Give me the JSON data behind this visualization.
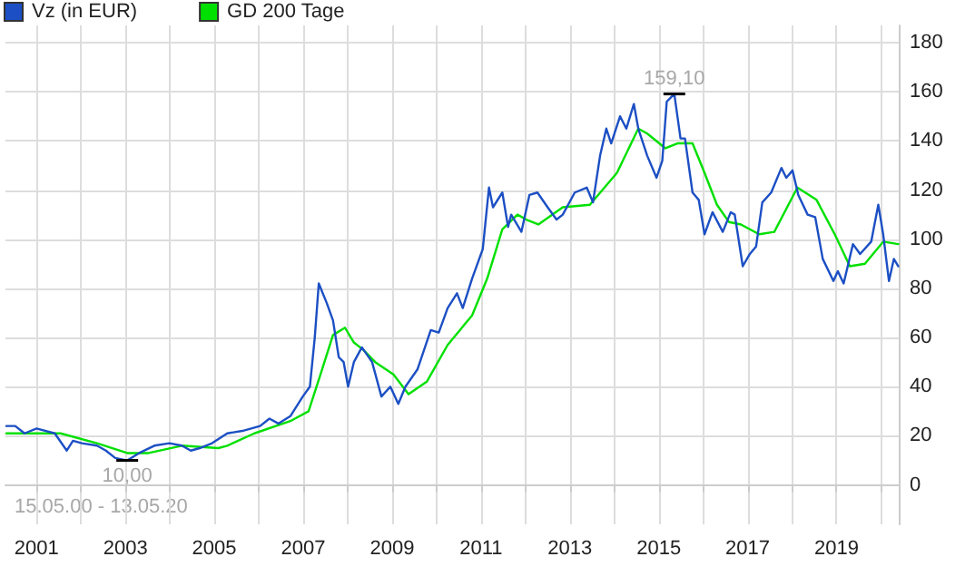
{
  "chart_data": {
    "type": "line",
    "legend": "top left",
    "grid": true,
    "marker": "none",
    "line_style": "solid",
    "xlim": [
      2000.3,
      2020.4
    ],
    "ylim": [
      -16,
      187
    ],
    "xticks": [
      2001,
      {
        "value": 2002,
        "label": null
      },
      2003,
      {
        "value": 2004,
        "label": null
      },
      2005,
      {
        "value": 2006,
        "label": null
      },
      2007,
      {
        "value": 2008,
        "label": null
      },
      2009,
      {
        "value": 2010,
        "label": null
      },
      2011,
      {
        "value": 2012,
        "label": null
      },
      2013,
      {
        "value": 2014,
        "label": null
      },
      2015,
      {
        "value": 2016,
        "label": null
      },
      2017,
      {
        "value": 2018,
        "label": null
      },
      2019,
      {
        "value": 2020,
        "label": null
      }
    ],
    "yticks": [
      0,
      20,
      40,
      60,
      80,
      100,
      120,
      140,
      160,
      180
    ],
    "series": [
      {
        "name": "Vz (in EUR)",
        "color": "#1c4fc4",
        "x": [
          2000.32,
          2000.52,
          2000.73,
          2001.0,
          2001.41,
          2001.68,
          2001.82,
          2002.02,
          2002.36,
          2002.56,
          2002.77,
          2003.04,
          2003.31,
          2003.65,
          2003.99,
          2004.27,
          2004.47,
          2004.67,
          2004.95,
          2005.29,
          2005.63,
          2006.03,
          2006.24,
          2006.44,
          2006.71,
          2006.99,
          2007.15,
          2007.26,
          2007.35,
          2007.53,
          2007.67,
          2007.8,
          2007.91,
          2008.01,
          2008.14,
          2008.32,
          2008.55,
          2008.76,
          2008.96,
          2009.14,
          2009.3,
          2009.57,
          2009.87,
          2010.05,
          2010.25,
          2010.46,
          2010.59,
          2010.8,
          2011.04,
          2011.18,
          2011.27,
          2011.48,
          2011.61,
          2011.68,
          2011.91,
          2012.09,
          2012.27,
          2012.5,
          2012.7,
          2012.84,
          2013.11,
          2013.38,
          2013.52,
          2013.68,
          2013.82,
          2013.93,
          2014.13,
          2014.27,
          2014.44,
          2014.54,
          2014.74,
          2014.95,
          2015.08,
          2015.18,
          2015.35,
          2015.49,
          2015.59,
          2015.76,
          2015.9,
          2016.03,
          2016.21,
          2016.44,
          2016.62,
          2016.71,
          2016.89,
          2017.05,
          2017.19,
          2017.33,
          2017.53,
          2017.76,
          2017.87,
          2018.01,
          2018.14,
          2018.35,
          2018.52,
          2018.69,
          2018.93,
          2019.03,
          2019.16,
          2019.37,
          2019.53,
          2019.78,
          2019.94,
          2020.05,
          2020.18,
          2020.29,
          2020.39
        ],
        "values": [
          24,
          24,
          21,
          23,
          21,
          14,
          18,
          17,
          16,
          14,
          11,
          10,
          13,
          16,
          17,
          16,
          14,
          15,
          17,
          21,
          22,
          24,
          27,
          25,
          28,
          36,
          40,
          60,
          82,
          74,
          67,
          52,
          50,
          40,
          50,
          56,
          50,
          36,
          40,
          33,
          40,
          47,
          63,
          62,
          72,
          78,
          72,
          84,
          96,
          121,
          113,
          119,
          105,
          110,
          103,
          118,
          119,
          113,
          108,
          110,
          119,
          121,
          115,
          134,
          145,
          139,
          150,
          145,
          155,
          145,
          134,
          125,
          132,
          156,
          159.1,
          141,
          141,
          119,
          116,
          102,
          111,
          103,
          111,
          110,
          89,
          94,
          97,
          115,
          119,
          129,
          125,
          128,
          118,
          110,
          109,
          92,
          83,
          87,
          82,
          98,
          94,
          99,
          114,
          102,
          83,
          92,
          89
        ]
      },
      {
        "name": "GD 200 Tage",
        "color": "#00e000",
        "x": [
          2000.32,
          2001.0,
          2001.54,
          2002.36,
          2003.04,
          2003.52,
          2004.27,
          2005.09,
          2005.29,
          2005.9,
          2006.71,
          2007.12,
          2007.39,
          2007.67,
          2007.94,
          2008.14,
          2008.35,
          2008.62,
          2009.03,
          2009.37,
          2009.78,
          2010.25,
          2010.8,
          2011.14,
          2011.48,
          2011.82,
          2012.02,
          2012.29,
          2012.84,
          2013.45,
          2014.06,
          2014.54,
          2014.74,
          2015.15,
          2015.42,
          2015.76,
          2016.03,
          2016.31,
          2016.58,
          2016.85,
          2017.26,
          2017.6,
          2018.12,
          2018.55,
          2018.96,
          2019.3,
          2019.64,
          2020.05,
          2020.39
        ],
        "values": [
          21,
          21,
          21,
          17,
          13,
          13,
          16,
          15,
          16,
          21,
          26,
          30,
          45,
          61,
          64,
          58,
          55,
          50,
          45,
          37,
          42,
          57,
          69,
          84,
          104,
          110,
          108,
          106,
          113,
          114,
          127,
          145,
          143,
          137,
          139,
          139,
          127,
          114,
          107,
          106,
          102,
          103,
          121,
          116,
          102,
          89,
          90,
          99,
          98
        ]
      }
    ],
    "annotations": [
      {
        "text": "159,10",
        "x": 2015.35,
        "y": 159.1
      },
      {
        "text": "10,00",
        "x": 2003.04,
        "y": 10
      },
      "15.05.00 - 13.05.20"
    ]
  }
}
